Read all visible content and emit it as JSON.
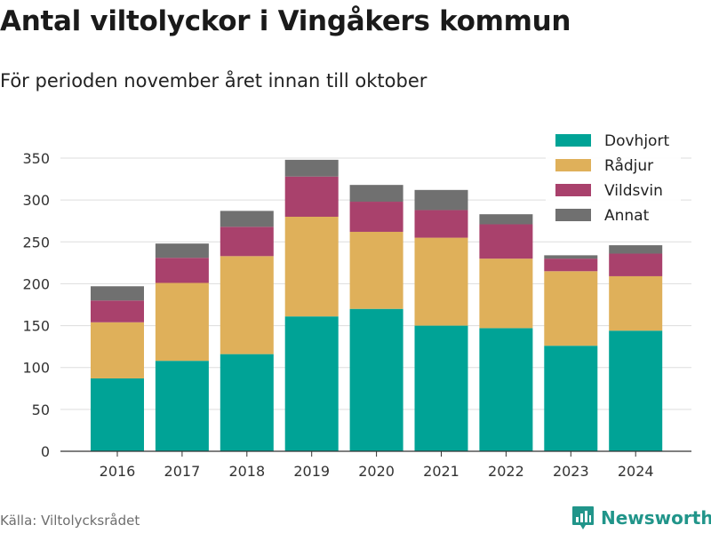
{
  "title": "Antal viltolyckor i Vingåkers kommun",
  "subtitle": "För perioden november året innan till oktober",
  "source": "Källa: Viltolycksrådet",
  "brand": {
    "name": "Newsworthy",
    "icon": "bar-chart-logo-icon",
    "color": "#21958a"
  },
  "chart_data": {
    "type": "bar",
    "stacked": true,
    "categories": [
      "2016",
      "2017",
      "2018",
      "2019",
      "2020",
      "2021",
      "2022",
      "2023",
      "2024"
    ],
    "series": [
      {
        "name": "Dovhjort",
        "color": "#00a396",
        "values": [
          87,
          108,
          116,
          161,
          170,
          150,
          147,
          126,
          144
        ]
      },
      {
        "name": "Rådjur",
        "color": "#dfb05a",
        "values": [
          67,
          93,
          117,
          119,
          92,
          105,
          83,
          89,
          65
        ]
      },
      {
        "name": "Vildsvin",
        "color": "#a9416c",
        "values": [
          26,
          30,
          35,
          48,
          36,
          33,
          41,
          15,
          27
        ]
      },
      {
        "name": "Annat",
        "color": "#707070",
        "values": [
          17,
          17,
          19,
          20,
          20,
          24,
          12,
          4,
          10
        ]
      }
    ],
    "ylim": [
      0,
      350
    ],
    "yticks": [
      0,
      50,
      100,
      150,
      200,
      250,
      300,
      350
    ],
    "grid": true,
    "legend_position": "top-right"
  }
}
